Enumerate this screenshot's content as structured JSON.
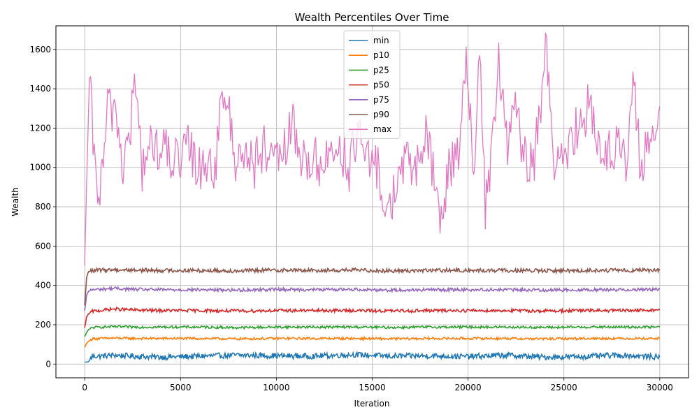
{
  "chart_data": {
    "type": "line",
    "title": "Wealth Percentiles Over Time",
    "xlabel": "Iteration",
    "ylabel": "Wealth",
    "xlim": [
      -1500,
      31500
    ],
    "ylim": [
      -70,
      1720
    ],
    "xticks": [
      0,
      5000,
      10000,
      15000,
      20000,
      25000,
      30000
    ],
    "yticks": [
      0,
      200,
      400,
      600,
      800,
      1000,
      1200,
      1400,
      1600
    ],
    "grid": true,
    "legend_position": "top-center",
    "series": [
      {
        "name": "min",
        "color": "#1f77b4",
        "x": [
          0,
          100,
          200,
          400,
          800,
          1500,
          2500,
          4000,
          6000,
          8000,
          10000,
          12000,
          14000,
          16000,
          18000,
          20000,
          22000,
          24000,
          26000,
          28000,
          30000
        ],
        "values": [
          10,
          10,
          12,
          40,
          40,
          45,
          40,
          35,
          40,
          45,
          42,
          40,
          48,
          40,
          42,
          38,
          45,
          35,
          38,
          45,
          35
        ]
      },
      {
        "name": "p10",
        "color": "#ff7f0e",
        "x": [
          0,
          100,
          200,
          400,
          800,
          1500,
          2500,
          4000,
          6000,
          8000,
          10000,
          12000,
          14000,
          16000,
          18000,
          20000,
          22000,
          24000,
          26000,
          28000,
          30000
        ],
        "values": [
          85,
          105,
          115,
          128,
          130,
          132,
          130,
          130,
          130,
          128,
          130,
          130,
          130,
          128,
          130,
          130,
          130,
          128,
          130,
          130,
          130
        ]
      },
      {
        "name": "p25",
        "color": "#2ca02c",
        "x": [
          0,
          100,
          200,
          400,
          800,
          1500,
          2500,
          4000,
          6000,
          8000,
          10000,
          12000,
          14000,
          16000,
          18000,
          20000,
          22000,
          24000,
          26000,
          28000,
          30000
        ],
        "values": [
          140,
          160,
          175,
          185,
          188,
          190,
          188,
          188,
          188,
          185,
          188,
          188,
          188,
          186,
          188,
          188,
          188,
          186,
          188,
          188,
          188
        ]
      },
      {
        "name": "p50",
        "color": "#d62728",
        "x": [
          0,
          100,
          200,
          400,
          800,
          1500,
          2500,
          4000,
          6000,
          8000,
          10000,
          12000,
          14000,
          16000,
          18000,
          20000,
          22000,
          24000,
          26000,
          28000,
          30000
        ],
        "values": [
          185,
          240,
          255,
          268,
          272,
          280,
          275,
          272,
          272,
          270,
          272,
          272,
          272,
          270,
          272,
          272,
          272,
          270,
          272,
          272,
          275
        ]
      },
      {
        "name": "p75",
        "color": "#9467bd",
        "x": [
          0,
          100,
          200,
          400,
          800,
          1500,
          2500,
          4000,
          6000,
          8000,
          10000,
          12000,
          14000,
          16000,
          18000,
          20000,
          22000,
          24000,
          26000,
          28000,
          30000
        ],
        "values": [
          270,
          350,
          370,
          378,
          380,
          385,
          380,
          378,
          378,
          376,
          380,
          378,
          380,
          376,
          378,
          378,
          378,
          376,
          378,
          378,
          380
        ]
      },
      {
        "name": "p90",
        "color": "#8c564b",
        "x": [
          0,
          100,
          200,
          400,
          800,
          1500,
          2500,
          4000,
          6000,
          8000,
          10000,
          12000,
          14000,
          16000,
          18000,
          20000,
          22000,
          24000,
          26000,
          28000,
          30000
        ],
        "values": [
          300,
          440,
          470,
          475,
          478,
          480,
          478,
          476,
          476,
          474,
          478,
          476,
          478,
          474,
          476,
          476,
          476,
          474,
          476,
          476,
          478
        ]
      },
      {
        "name": "max",
        "color": "#e377c2",
        "x": [
          0,
          100,
          250,
          500,
          800,
          1200,
          1600,
          2000,
          2400,
          2600,
          3000,
          3500,
          4000,
          4500,
          5000,
          5400,
          5800,
          6300,
          6800,
          7300,
          7800,
          8300,
          8800,
          9300,
          9800,
          10300,
          10800,
          11300,
          11800,
          12300,
          12800,
          13300,
          13800,
          14300,
          14800,
          15300,
          15800,
          16300,
          16800,
          17300,
          17800,
          18300,
          18600,
          19000,
          19500,
          19900,
          20300,
          20600,
          20900,
          21300,
          21600,
          22000,
          22400,
          22900,
          23400,
          23800,
          24100,
          24500,
          25000,
          25500,
          26000,
          26300,
          26800,
          27300,
          27800,
          28300,
          28600,
          29000,
          29500,
          30000
        ],
        "values": [
          500,
          920,
          1455,
          1020,
          850,
          1285,
          1315,
          1000,
          1205,
          1440,
          1000,
          1125,
          1085,
          1060,
          1000,
          1120,
          1000,
          1035,
          1000,
          1435,
          1050,
          1100,
          1000,
          1100,
          1000,
          1045,
          1220,
          1040,
          1050,
          1005,
          1070,
          1120,
          1000,
          1180,
          1010,
          1000,
          740,
          950,
          1020,
          1000,
          1160,
          900,
          720,
          1000,
          1100,
          1550,
          1000,
          1540,
          800,
          1130,
          1540,
          1110,
          1310,
          1050,
          1000,
          1340,
          1630,
          1000,
          1000,
          1180,
          1210,
          1390,
          1100,
          1100,
          1100,
          1000,
          1440,
          1000,
          1130,
          1310
        ]
      }
    ]
  }
}
